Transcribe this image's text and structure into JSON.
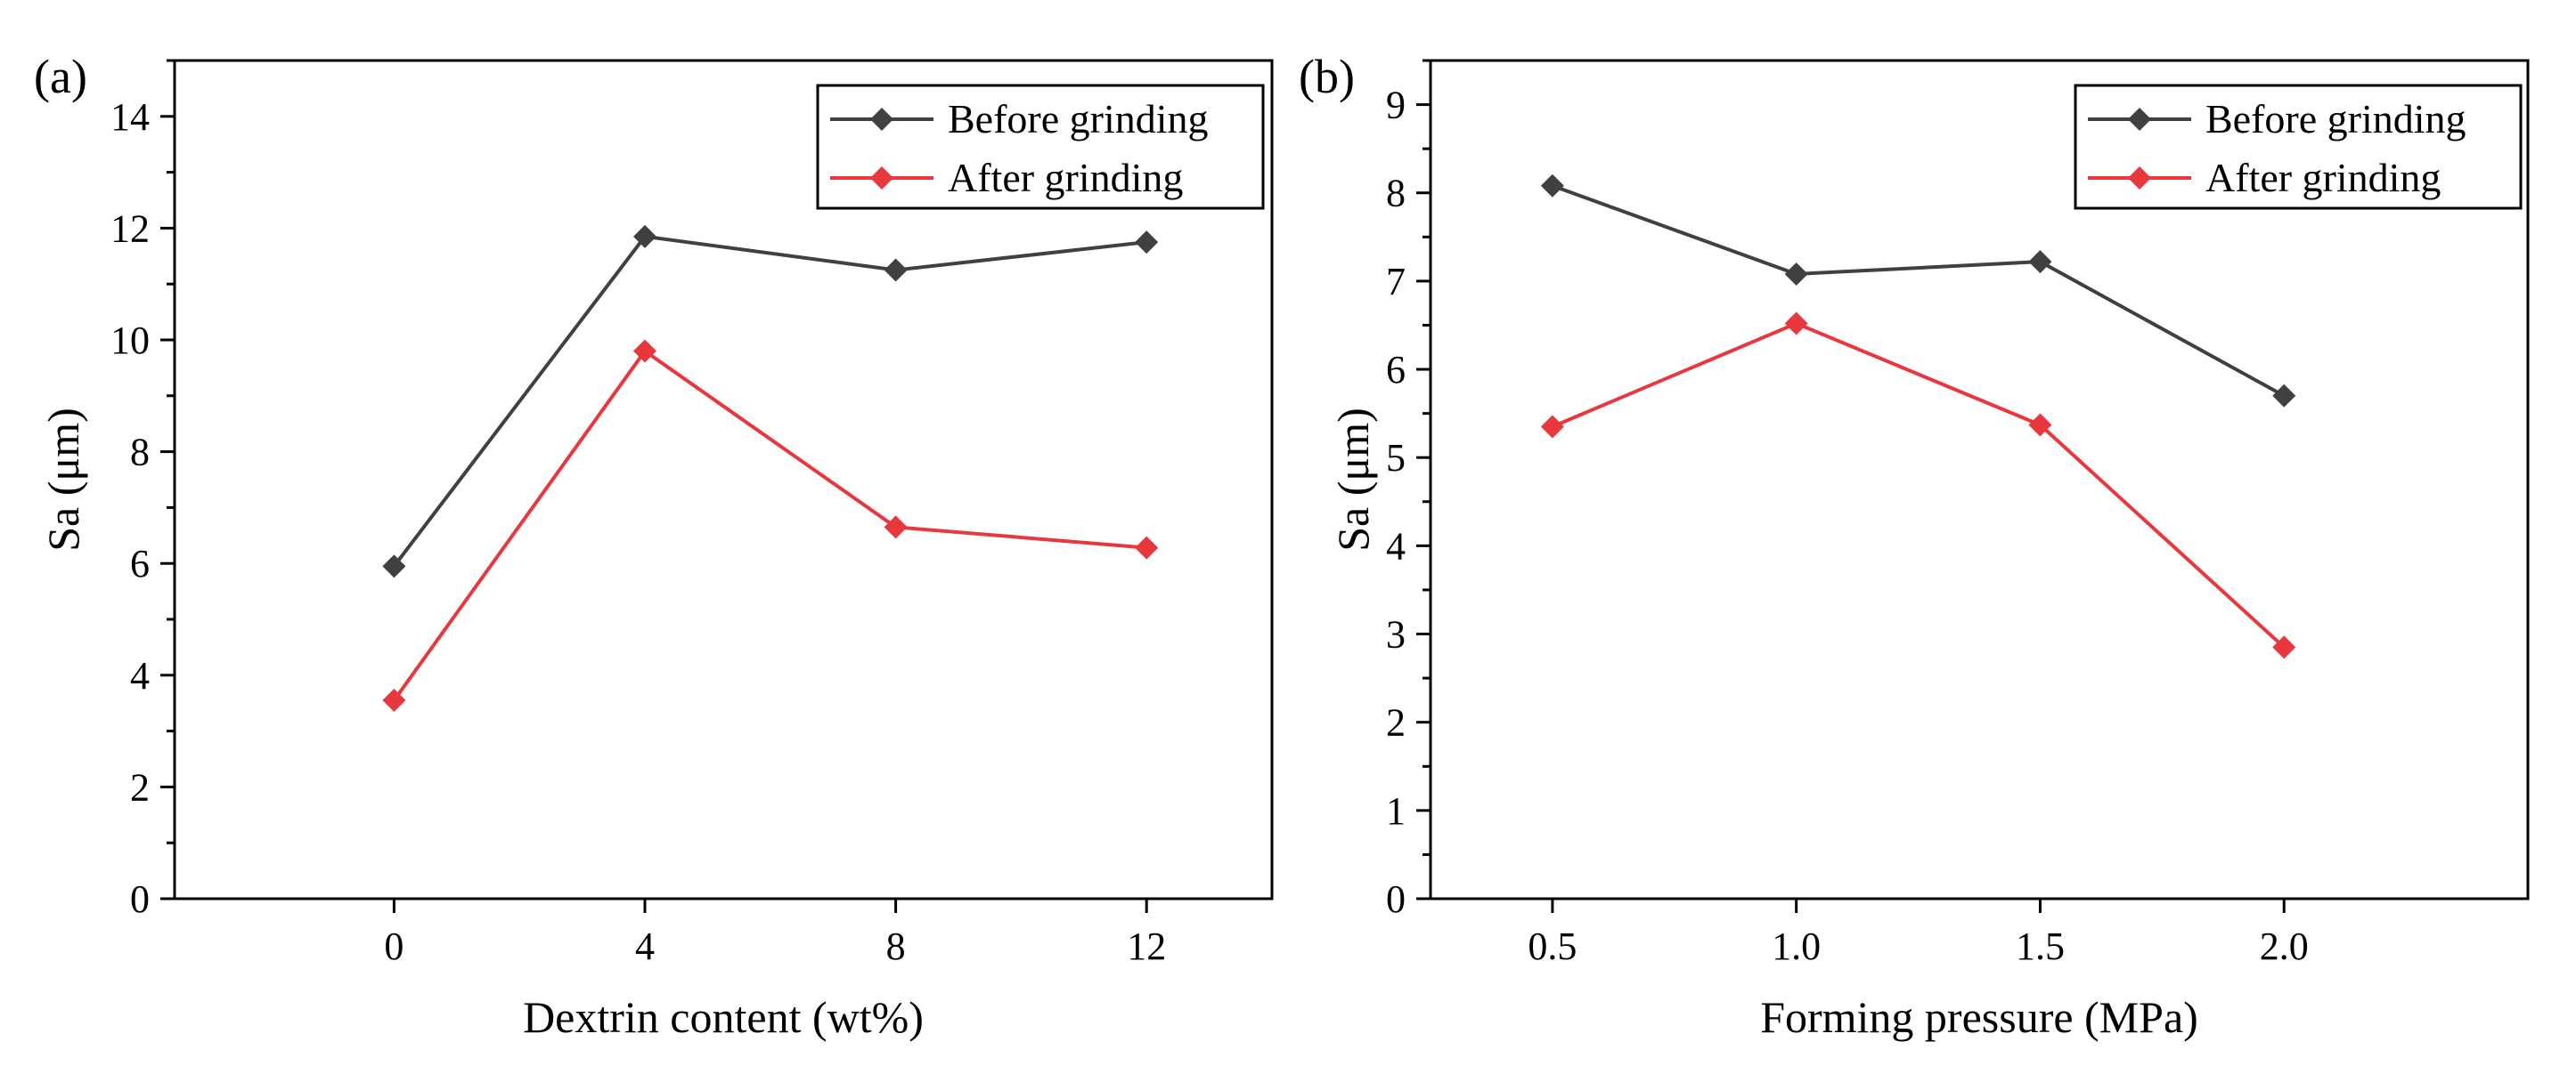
{
  "chart_data": [
    {
      "panel_label": "(a)",
      "type": "line",
      "xlabel": "Dextrin content (wt%)",
      "ylabel": "Sa (μm)",
      "categories": [
        "0",
        "4",
        "8",
        "12"
      ],
      "x": [
        0,
        4,
        8,
        12
      ],
      "xlim": [
        -3.5,
        14
      ],
      "ylim": [
        0,
        15
      ],
      "yticks": [
        0,
        2,
        4,
        6,
        8,
        10,
        12,
        14
      ],
      "ytick_labels": [
        "0",
        "2",
        "4",
        "6",
        "8",
        "10",
        "12",
        "14"
      ],
      "minor_y_step": 1,
      "legend_position": "top-right",
      "series": [
        {
          "name": "Before grinding",
          "color": "#404040",
          "marker": "diamond",
          "values": [
            5.95,
            11.85,
            11.25,
            11.75
          ]
        },
        {
          "name": "After grinding",
          "color": "#e8373d",
          "marker": "diamond",
          "values": [
            3.55,
            9.8,
            6.65,
            6.28
          ]
        }
      ]
    },
    {
      "panel_label": "(b)",
      "type": "line",
      "xlabel": "Forming pressure (MPa)",
      "ylabel": "Sa (μm)",
      "categories": [
        "0.5",
        "1.0",
        "1.5",
        "2.0"
      ],
      "x": [
        0.5,
        1.0,
        1.5,
        2.0
      ],
      "xlim": [
        0.25,
        2.5
      ],
      "ylim": [
        0,
        9.5
      ],
      "yticks": [
        0,
        1,
        2,
        3,
        4,
        5,
        6,
        7,
        8,
        9
      ],
      "ytick_labels": [
        "0",
        "1",
        "2",
        "3",
        "4",
        "5",
        "6",
        "7",
        "8",
        "9"
      ],
      "minor_y_step": 0.5,
      "legend_position": "top-right",
      "series": [
        {
          "name": "Before grinding",
          "color": "#404040",
          "marker": "diamond",
          "values": [
            8.08,
            7.08,
            7.22,
            5.7
          ]
        },
        {
          "name": "After grinding",
          "color": "#e8373d",
          "marker": "diamond",
          "values": [
            5.35,
            6.52,
            5.37,
            2.85
          ]
        }
      ]
    }
  ]
}
